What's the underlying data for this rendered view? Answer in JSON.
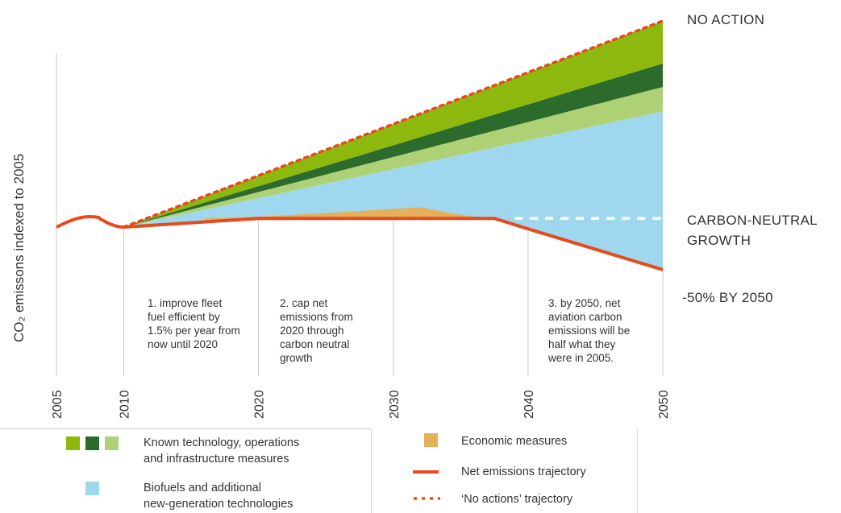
{
  "chart_data": {
    "type": "area",
    "xlabel": "",
    "ylabel": "CO₂ emissons indexed to 2005",
    "x_ticks": [
      "2005",
      "2010",
      "2020",
      "2030",
      "2040",
      "2050"
    ],
    "xlim": [
      2005,
      2050
    ],
    "series": [
      {
        "name": "Net emissions trajectory",
        "style": "solid-line",
        "color": "#e8491d",
        "points": [
          [
            2005,
            100
          ],
          [
            2007.3,
            112
          ],
          [
            2010,
            100
          ],
          [
            2020,
            110
          ],
          [
            2037.5,
            110
          ],
          [
            2040,
            98
          ],
          [
            2050,
            51
          ]
        ]
      },
      {
        "name": "'No actions' trajectory",
        "style": "dotted-line",
        "color": "#e8491d",
        "points": [
          [
            2010,
            100
          ],
          [
            2050,
            337
          ]
        ]
      }
    ],
    "bands": [
      {
        "name": "Known technology, operations and infrastructure measures",
        "color": "#8db90e",
        "upper_2050": 337,
        "lower_2050": 288
      },
      {
        "name": "Known technology, operations and infrastructure measures",
        "color": "#2d6b2d",
        "upper_2050": 288,
        "lower_2050": 261
      },
      {
        "name": "Known technology, operations and infrastructure measures",
        "color": "#afd175",
        "upper_2050": 261,
        "lower_2050": 233
      },
      {
        "name": "Biofuels and additional new-generation technologies",
        "color": "#9fd8ee",
        "upper_2050": 233,
        "lower_2050": 51
      },
      {
        "name": "Economic measures",
        "color": "#e5b05a",
        "peak_year": 2032,
        "peak_value": 123
      }
    ],
    "reference_line": {
      "value": 110,
      "from": 2039,
      "to": 2050,
      "style": "dashed",
      "color": "#ffffff"
    },
    "end_labels": [
      "NO ACTION",
      "CARBON-NEUTRAL",
      "GROWTH",
      "-50% BY 2050"
    ],
    "annotations": [
      [
        "1. improve fleet",
        "fuel efficient by",
        "1.5% per year from",
        "now until 2020"
      ],
      [
        "2. cap net",
        "emissions from",
        "2020 through",
        "carbon neutral",
        "growth"
      ],
      [
        "3. by 2050, net",
        "aviation carbon",
        "emissions will be",
        "half what they",
        "were in 2005."
      ]
    ],
    "grid": false,
    "legend_position": "bottom"
  },
  "legend": {
    "known_tech_line1": "Known technology, operations",
    "known_tech_line2": "and infrastructure measures",
    "biofuels_line1": "Biofuels and additional",
    "biofuels_line2": "new-generation technologies",
    "economic": "Economic measures",
    "net": "Net emissions trajectory",
    "no_action": "‘No actions’ trajectory"
  }
}
